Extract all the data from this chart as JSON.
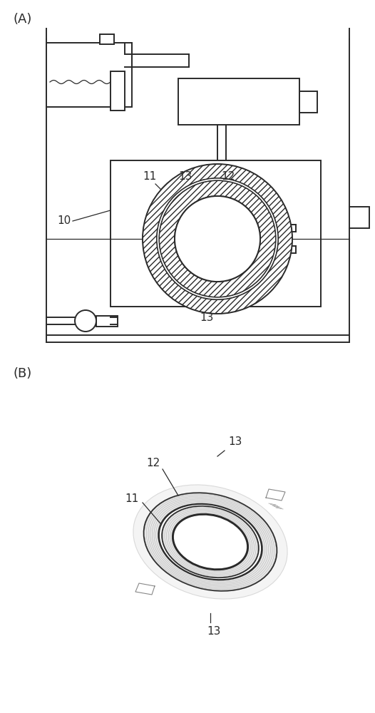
{
  "fig_width": 5.26,
  "fig_height": 10.0,
  "dpi": 100,
  "bg_color": "#ffffff",
  "line_color": "#2a2a2a",
  "label_A": "(A)",
  "label_B": "(B)"
}
